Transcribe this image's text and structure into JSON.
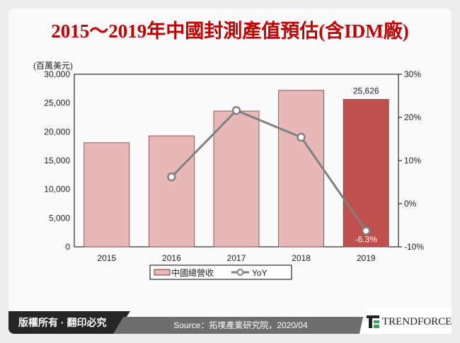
{
  "title": "2015～2019年中國封測產值預估(含IDM廠)",
  "footer": {
    "copyright": "版權所有 · 翻印必究",
    "source": "Source：拓墣產業研究院，2020/04",
    "brand": "TRENDFORCE"
  },
  "colors": {
    "bar": "#e6b8b8",
    "bar_highlight": "#c0504d",
    "line": "#808080",
    "title": "#c00000"
  },
  "chart_data": {
    "type": "bar+line",
    "categories": [
      "2015",
      "2016",
      "2017",
      "2018",
      "2019"
    ],
    "y_left_label": "(百萬美元)",
    "y_left_ticks": [
      "30,000",
      "25,000",
      "20,000",
      "15,000",
      "10,000",
      "5,000",
      "0"
    ],
    "y_left_range": [
      0,
      30000
    ],
    "y_right_ticks": [
      "30%",
      "20%",
      "10%",
      "0%",
      "-10%"
    ],
    "y_right_range": [
      -10,
      30
    ],
    "series": [
      {
        "name": "中國總營收",
        "type": "bar",
        "axis": "left",
        "values": [
          18100,
          19300,
          23600,
          27200,
          25626
        ],
        "highlight_last": true
      },
      {
        "name": "YoY",
        "type": "line",
        "axis": "right",
        "values": [
          null,
          6.2,
          21.6,
          15.4,
          -6.3
        ]
      }
    ],
    "data_labels": {
      "bar_2019": "25,626",
      "yoy_2019": "-6.3%"
    },
    "legend_placement": "bottom",
    "grid": false
  }
}
